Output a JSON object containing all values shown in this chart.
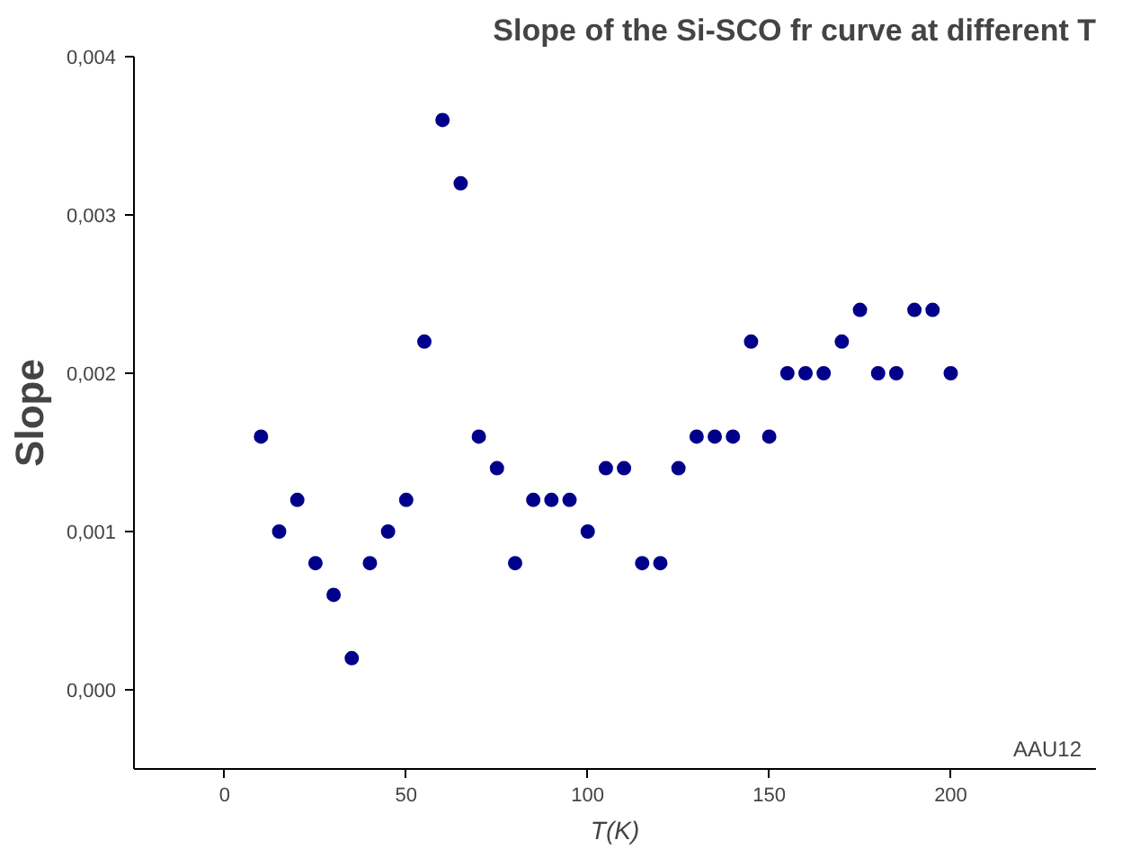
{
  "chart_data": {
    "type": "scatter",
    "title": "Slope of the Si-SCO fr curve at different T",
    "xlabel": "T(K)",
    "ylabel": "Slope",
    "x": [
      10,
      15,
      20,
      25,
      30,
      35,
      40,
      45,
      50,
      55,
      60,
      65,
      70,
      75,
      80,
      85,
      90,
      95,
      100,
      105,
      110,
      115,
      120,
      125,
      130,
      135,
      140,
      145,
      150,
      155,
      160,
      165,
      170,
      175,
      180,
      185,
      190,
      195,
      200
    ],
    "series": [
      {
        "color": "#00008b",
        "values": [
          0.0016,
          0.001,
          0.0012,
          0.0008,
          0.0006,
          0.0002,
          0.0008,
          0.001,
          0.0012,
          0.0022,
          0.0036,
          0.0032,
          0.0016,
          0.0014,
          0.0008,
          0.0012,
          0.0012,
          0.0012,
          0.001,
          0.0014,
          0.0014,
          0.0008,
          0.0008,
          0.0014,
          0.0016,
          0.0016,
          0.0016,
          0.0022,
          0.0016,
          0.002,
          0.002,
          0.002,
          0.0022,
          0.0024,
          0.002,
          0.002,
          0.0024,
          0.0024,
          0.002
        ]
      }
    ],
    "xlim": [
      -25,
      240
    ],
    "ylim": [
      -0.0005,
      0.004
    ],
    "xticks": [
      0,
      50,
      100,
      150,
      200
    ],
    "yticks": [
      {
        "value": 0,
        "label": "0,000"
      },
      {
        "value": 0.001,
        "label": "0,001"
      },
      {
        "value": 0.002,
        "label": "0,002"
      },
      {
        "value": 0.003,
        "label": "0,003"
      },
      {
        "value": 0.004,
        "label": "0,004"
      }
    ],
    "marker": "circle",
    "grid": false,
    "annotations": [
      "AAU12"
    ]
  }
}
